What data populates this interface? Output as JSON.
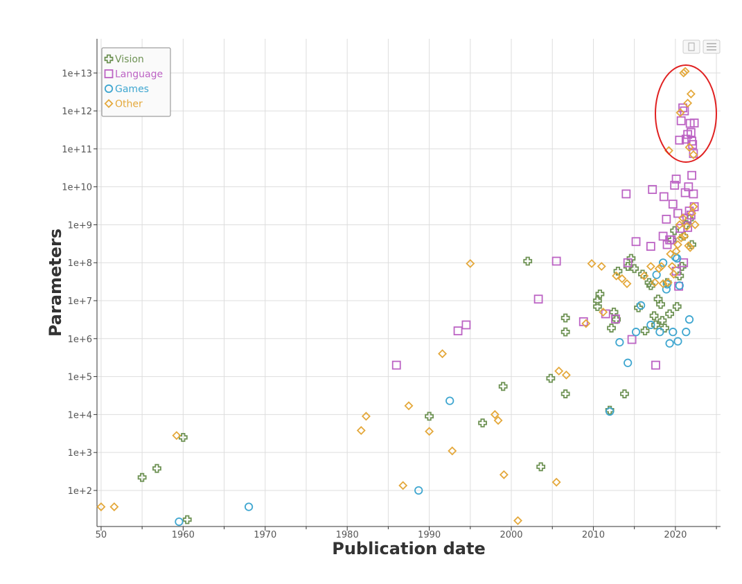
{
  "chart_data": {
    "type": "scatter",
    "title": "",
    "xlabel": "Publication date",
    "ylabel": "Parameters",
    "x_ticks": [
      "50",
      "1960",
      "1970",
      "1980",
      "1990",
      "2000",
      "2010",
      "2020"
    ],
    "y_ticks": [
      "1e+2",
      "1e+3",
      "1e+4",
      "1e+5",
      "1e+6",
      "1e+7",
      "1e+8",
      "1e+9",
      "1e+10",
      "1e+11",
      "1e+12",
      "1e+13"
    ],
    "xlim": [
      1949.5,
      2025.5
    ],
    "ylim_log10": [
      1.05,
      13.9
    ],
    "y_scale": "log",
    "grid": true,
    "legend_position": "top-left",
    "annotation": "red ellipse highlighting models above 1e+11 parameters around 2020-2022",
    "annotation_color": "#e02020",
    "series": [
      {
        "name": "Vision",
        "marker": "cross",
        "color": "#6e9254",
        "x": [
          1955.0,
          1956.8,
          1960.0,
          1960.5,
          1990.0,
          1996.5,
          1999.0,
          2002.0,
          2003.6,
          2004.8,
          2006.6,
          2006.6,
          2006.6,
          2010.5,
          2010.5,
          2010.8,
          2012.0,
          2012.2,
          2012.5,
          2012.8,
          2013.0,
          2013.8,
          2014.2,
          2014.6,
          2015.0,
          2015.5,
          2016.0,
          2016.3,
          2016.8,
          2017.0,
          2017.4,
          2017.6,
          2017.9,
          2018.2,
          2018.4,
          2018.7,
          2019.0,
          2019.3,
          2019.6,
          2019.9,
          2020.2,
          2020.5,
          2020.8,
          2021.0,
          2021.3,
          2021.7,
          2022.0
        ],
        "y": [
          220,
          380,
          2500,
          17,
          9000,
          6000,
          55000,
          110000000,
          420,
          90000,
          3500000,
          1500000,
          35000,
          10000000,
          7000000,
          15000000,
          13000,
          1900000,
          5000000,
          3200000,
          60000000,
          35000,
          80000000,
          130000000,
          70000000,
          6500000,
          50000000,
          1600000,
          30000000,
          25000000,
          4000000,
          2300000,
          11000000,
          8000000,
          3000000,
          1900000,
          30000000,
          4500000,
          400000000,
          700000000,
          7000000,
          45000000,
          80000000,
          500000000,
          1000000000,
          1400000000,
          300000000
        ]
      },
      {
        "name": "Language",
        "marker": "square",
        "color": "#bc63c4",
        "x": [
          1986.0,
          1993.5,
          1994.5,
          2003.3,
          2005.5,
          2008.8,
          2011.5,
          2012.7,
          2014.0,
          2014.2,
          2014.7,
          2015.2,
          2017.0,
          2017.2,
          2017.6,
          2018.6,
          2018.9,
          2019.0,
          2019.3,
          2019.7,
          2019.9,
          2020.1,
          2020.3,
          2020.5,
          2020.7,
          2020.9,
          2021.1,
          2021.3,
          2021.5,
          2021.6,
          2021.8,
          2021.9,
          2022.0,
          2022.1,
          2022.2,
          2022.3,
          2020.4,
          2021.0,
          2021.4,
          2021.7,
          2022.0,
          2022.3,
          2021.2,
          2020.6,
          2021.9,
          2019.5,
          2018.5,
          2022.2,
          2021.5,
          2020.1
        ],
        "y": [
          200000,
          1600000,
          2300000,
          11000000,
          110000000,
          2800000,
          4500000,
          3300000,
          6500000000,
          100000000,
          950000,
          360000000,
          270000000,
          8500000000,
          200000,
          5500000000,
          1400000000,
          300000000,
          400000000,
          3500000000,
          11000000000,
          16000000000,
          2000000000,
          170000000000,
          550000000000,
          1200000000000,
          1000000000000,
          180000000000,
          240000000000,
          10000000000,
          470000000000,
          270000000000,
          160000000000,
          130000000000,
          6500000000,
          3000000000,
          24000000,
          100000000,
          1500000000,
          2300000000,
          20000000000,
          480000000000,
          7000000000,
          800000000,
          1800000000,
          400000000,
          500000000,
          75000000000,
          850000000,
          60000000
        ]
      },
      {
        "name": "Games",
        "marker": "circle",
        "color": "#3ea6d0",
        "x": [
          1959.5,
          1968.0,
          1988.7,
          1992.5,
          2012.0,
          2013.2,
          2014.2,
          2015.2,
          2015.8,
          2017.0,
          2017.7,
          2018.1,
          2018.5,
          2018.9,
          2019.3,
          2019.7,
          2020.0,
          2020.3,
          2020.5,
          2021.3,
          2021.7,
          2019.0,
          2020.2
        ],
        "y": [
          15,
          37,
          100,
          23000,
          12000,
          800000,
          230000,
          1500000,
          7500000,
          2300000,
          48000000,
          1500000,
          100000000,
          20000000,
          750000,
          1500000,
          140000000,
          850000,
          25000000,
          1500000,
          3200000,
          27000000,
          130000000
        ]
      },
      {
        "name": "Other",
        "marker": "diamond",
        "color": "#e4a83b",
        "x": [
          1950.0,
          1951.6,
          1959.2,
          1981.7,
          1982.3,
          1986.8,
          1987.5,
          1990.0,
          1991.6,
          1992.8,
          1995.0,
          1998.0,
          1998.4,
          1999.1,
          2000.8,
          2005.5,
          2005.8,
          2006.7,
          2009.1,
          2009.8,
          2011.0,
          2011.2,
          2012.8,
          2013.5,
          2014.1,
          2016.2,
          2017.0,
          2017.5,
          2018.0,
          2018.3,
          2018.5,
          2019.1,
          2019.4,
          2019.6,
          2019.8,
          2020.1,
          2020.3,
          2020.5,
          2020.7,
          2020.9,
          2021.1,
          2021.4,
          2021.6,
          2021.8,
          2022.0,
          2022.2,
          2022.4,
          2021.2,
          2021.5,
          2021.9,
          2020.6,
          2021.0,
          2021.7,
          2022.2,
          2019.2
        ],
        "y": [
          37,
          37,
          2800,
          3800,
          9000,
          135,
          17000,
          3600,
          400000,
          1100,
          95000000,
          10000,
          7000,
          260,
          16,
          165,
          140000,
          110000,
          2500000,
          95000000,
          80000000,
          5000000,
          45000000,
          38000000,
          28000000,
          45000000,
          80000000,
          30000000,
          70000000,
          80000000,
          28000000,
          30000000,
          170000000,
          80000000,
          50000000,
          200000000,
          300000000,
          1000000000,
          450000000,
          1500000000,
          500000000,
          900000000,
          280000000,
          250000000,
          2000000000,
          3000000000,
          1000000000,
          11000000000000,
          1600000000000,
          2800000000000,
          900000000000,
          10000000000000,
          110000000000,
          70000000000,
          90000000000
        ]
      }
    ]
  }
}
